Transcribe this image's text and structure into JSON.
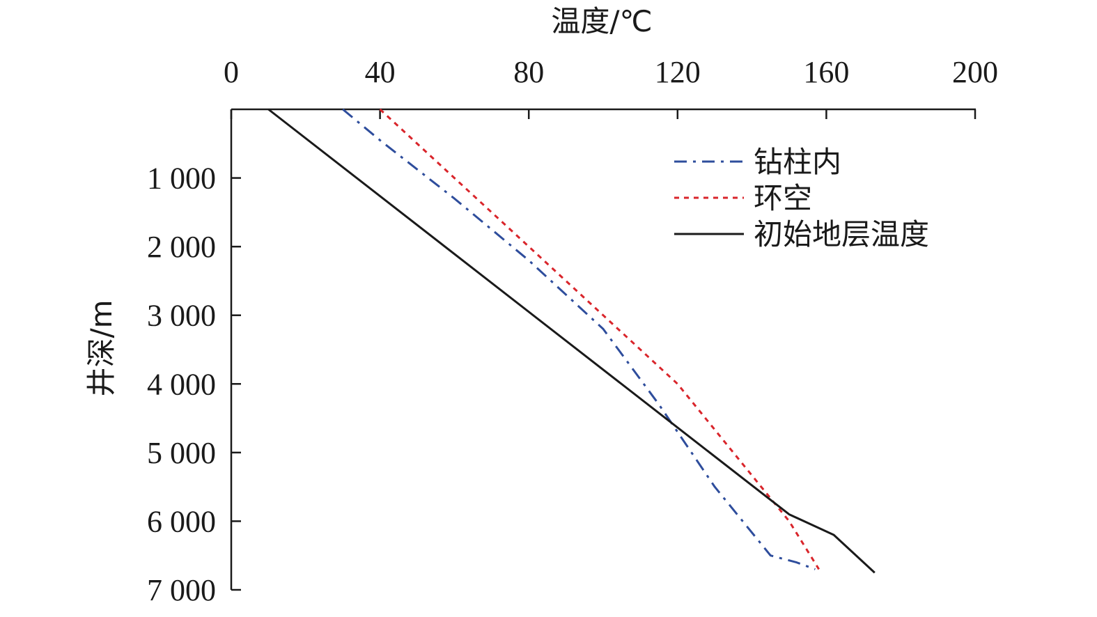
{
  "chart_data": {
    "type": "line",
    "xlabel": "温度/℃",
    "ylabel": "井深/m",
    "xlim": [
      0,
      200
    ],
    "ylim": [
      0,
      7000
    ],
    "x_axis_position": "top",
    "y_axis_inverted": true,
    "x_ticks": [
      0,
      40,
      80,
      120,
      160,
      200
    ],
    "x_tick_labels": [
      "0",
      "40",
      "80",
      "120",
      "160",
      "200"
    ],
    "y_ticks": [
      1000,
      2000,
      3000,
      4000,
      5000,
      6000,
      7000
    ],
    "y_tick_labels": [
      "1 000",
      "2 000",
      "3 000",
      "4 000",
      "5 000",
      "6 000",
      "7 000"
    ],
    "grid": false,
    "legend_position": "top-right",
    "series": [
      {
        "name": "钻柱内",
        "style": "dash-dot",
        "color": "#2e4d9c",
        "points": [
          [
            30,
            0
          ],
          [
            40,
            450
          ],
          [
            60,
            1300
          ],
          [
            80,
            2200
          ],
          [
            100,
            3200
          ],
          [
            115,
            4300
          ],
          [
            130,
            5500
          ],
          [
            145,
            6500
          ],
          [
            152,
            6600
          ],
          [
            157,
            6700
          ]
        ]
      },
      {
        "name": "环空",
        "style": "dotted",
        "color": "#d9252b",
        "points": [
          [
            40,
            0
          ],
          [
            60,
            1000
          ],
          [
            80,
            2000
          ],
          [
            100,
            3000
          ],
          [
            120,
            4000
          ],
          [
            135,
            5000
          ],
          [
            150,
            6000
          ],
          [
            158,
            6700
          ]
        ]
      },
      {
        "name": "初始地层温度",
        "style": "solid",
        "color": "#1a1a1a",
        "points": [
          [
            10,
            0
          ],
          [
            150,
            5900
          ],
          [
            162,
            6200
          ],
          [
            173,
            6750
          ]
        ]
      }
    ]
  }
}
